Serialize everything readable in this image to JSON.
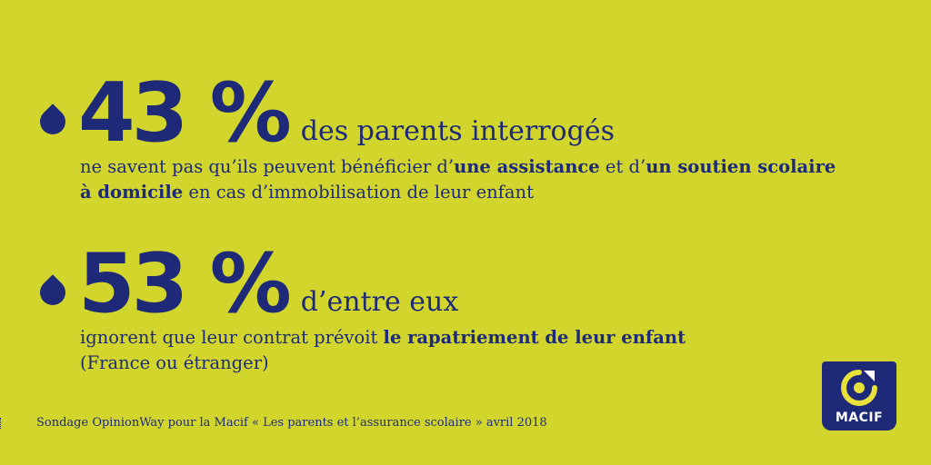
{
  "colors": {
    "background": "#d2d62c",
    "primary": "#1e2a78",
    "logo_accent": "#e9e03a"
  },
  "stats": [
    {
      "percent": "43 %",
      "lead": "des parents interrogés",
      "line1_pre": "ne savent pas qu’ils peuvent bénéficier d’",
      "line1_bold1": "une assistance",
      "line1_mid": " et d’",
      "line1_bold2": "un soutien scolaire",
      "line2_bold": "à domicile",
      "line2_post": " en cas d’immobilisation de leur enfant"
    },
    {
      "percent": "53 %",
      "lead": "d’entre eux",
      "line1_pre": "ignorent que leur contrat prévoit ",
      "line1_bold": "le rapatriement de leur enfant",
      "line2": "(France ou étranger)"
    }
  ],
  "source": "Sondage OpinionWay pour la Macif  « Les parents et l’assurance scolaire » avril 2018",
  "logo": {
    "text": "MACIF",
    "icon": "macif-logo-mark"
  }
}
